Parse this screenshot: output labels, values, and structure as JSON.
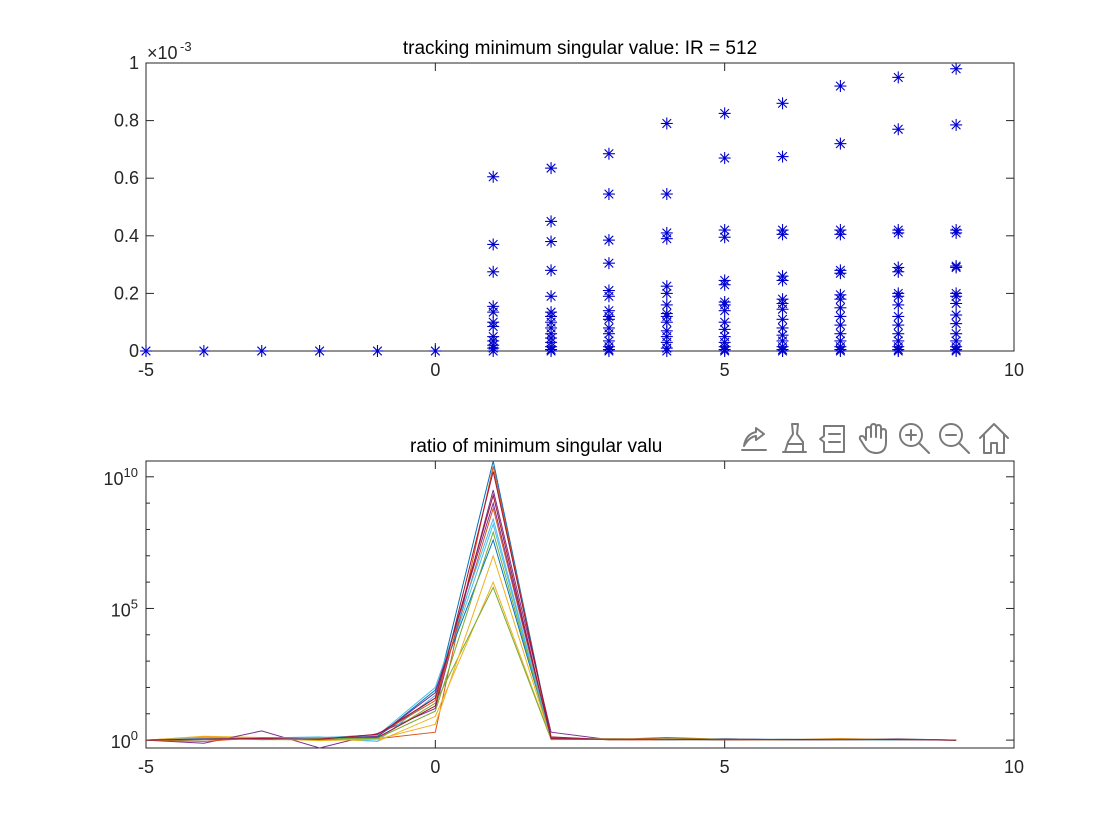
{
  "colors": {
    "axis": "#262626",
    "marker": "#0000cc",
    "toolbar": "#7a7a7a",
    "series_palette": [
      "#0072BD",
      "#D95319",
      "#EDB120",
      "#7E2F8E",
      "#77AC30",
      "#4DBEEE",
      "#A2142F"
    ]
  },
  "toolbar": {
    "icons": [
      "export-icon",
      "brush-icon",
      "data-tips-icon",
      "pan-icon",
      "zoom-in-icon",
      "zoom-out-icon",
      "home-icon"
    ]
  },
  "chart_data": [
    {
      "type": "scatter",
      "title": "tracking minimum singular value: IR = 512",
      "xlabel": "",
      "ylabel": "",
      "exponent_label": "×10",
      "exponent_value": "-3",
      "xlim": [
        -5,
        10
      ],
      "ylim": [
        0,
        1
      ],
      "xticks": [
        -5,
        0,
        5,
        10
      ],
      "yticks": [
        0,
        0.2,
        0.4,
        0.6,
        0.8,
        1
      ],
      "ytick_labels": [
        "0",
        "0.2",
        "0.4",
        "0.6",
        "0.8",
        "1"
      ],
      "marker": "asterisk",
      "grid": false,
      "points_by_x": [
        {
          "x": -5,
          "y": [
            0
          ]
        },
        {
          "x": -4,
          "y": [
            0
          ]
        },
        {
          "x": -3,
          "y": [
            0
          ]
        },
        {
          "x": -2,
          "y": [
            0
          ]
        },
        {
          "x": -1,
          "y": [
            0
          ]
        },
        {
          "x": 0,
          "y": [
            0
          ]
        },
        {
          "x": 1,
          "y": [
            0.605,
            0.37,
            0.275,
            0.155,
            0.135,
            0.1,
            0.085,
            0.05,
            0.035,
            0.02,
            0.01,
            0.0
          ]
        },
        {
          "x": 2,
          "y": [
            0.635,
            0.45,
            0.38,
            0.28,
            0.19,
            0.135,
            0.12,
            0.1,
            0.08,
            0.06,
            0.045,
            0.03,
            0.015,
            0.005,
            0.0
          ]
        },
        {
          "x": 3,
          "y": [
            0.685,
            0.545,
            0.385,
            0.305,
            0.21,
            0.19,
            0.14,
            0.12,
            0.11,
            0.08,
            0.06,
            0.035,
            0.015,
            0.005,
            0.0
          ]
        },
        {
          "x": 4,
          "y": [
            0.79,
            0.545,
            0.41,
            0.39,
            0.225,
            0.2,
            0.16,
            0.13,
            0.12,
            0.1,
            0.07,
            0.05,
            0.03,
            0.01,
            0.0
          ]
        },
        {
          "x": 5,
          "y": [
            0.825,
            0.67,
            0.42,
            0.395,
            0.245,
            0.23,
            0.17,
            0.16,
            0.14,
            0.1,
            0.075,
            0.05,
            0.03,
            0.015,
            0.005,
            0.0
          ]
        },
        {
          "x": 6,
          "y": [
            0.86,
            0.675,
            0.42,
            0.405,
            0.26,
            0.245,
            0.18,
            0.165,
            0.145,
            0.11,
            0.08,
            0.055,
            0.035,
            0.015,
            0.005,
            0.0
          ]
        },
        {
          "x": 7,
          "y": [
            0.92,
            0.72,
            0.42,
            0.405,
            0.28,
            0.27,
            0.195,
            0.18,
            0.15,
            0.12,
            0.09,
            0.06,
            0.035,
            0.015,
            0.005,
            0.0
          ]
        },
        {
          "x": 8,
          "y": [
            0.95,
            0.77,
            0.42,
            0.41,
            0.29,
            0.275,
            0.2,
            0.19,
            0.16,
            0.12,
            0.09,
            0.06,
            0.035,
            0.015,
            0.005,
            0.0
          ]
        },
        {
          "x": 9,
          "y": [
            0.98,
            0.785,
            0.42,
            0.41,
            0.295,
            0.29,
            0.2,
            0.19,
            0.165,
            0.125,
            0.095,
            0.06,
            0.035,
            0.015,
            0.005,
            0.0
          ]
        }
      ]
    },
    {
      "type": "line",
      "title": "ratio of minimum singular valu",
      "xlabel": "",
      "ylabel": "",
      "xlim": [
        -5,
        10
      ],
      "ylim": [
        -0.3,
        10.6
      ],
      "yscale": "log10",
      "xticks": [
        -5,
        0,
        5,
        10
      ],
      "ytick_exponents": [
        0,
        5,
        10
      ],
      "ytick_base": "10",
      "grid": false,
      "x": [
        -5,
        -4,
        -3,
        -2,
        -1,
        0,
        1,
        2,
        3,
        4,
        5,
        6,
        7,
        8,
        9
      ],
      "series_log10": [
        {
          "values": [
            0,
            0.02,
            0.05,
            0.03,
            0.15,
            1.6,
            10.6,
            0.1,
            0.03,
            0.02,
            0.01,
            0.01,
            0.02,
            0.01,
            0
          ]
        },
        {
          "values": [
            0,
            0.12,
            0.06,
            0.0,
            0.05,
            0.3,
            10.4,
            0.06,
            0.02,
            0.1,
            0.03,
            0.02,
            0.01,
            0.02,
            0
          ]
        },
        {
          "values": [
            0,
            0.15,
            0.1,
            0.05,
            -0.05,
            0.9,
            6.0,
            0.03,
            0.05,
            0.03,
            0.02,
            0.01,
            0.06,
            0.02,
            0
          ]
        },
        {
          "values": [
            0,
            -0.12,
            0.35,
            -0.4,
            0.25,
            1.2,
            9.5,
            0.3,
            0.02,
            0.01,
            0.05,
            0.02,
            0.01,
            0.03,
            0
          ]
        },
        {
          "values": [
            0,
            0.05,
            0.02,
            0.01,
            0.05,
            1.4,
            5.8,
            0.02,
            0.03,
            0.02,
            0.01,
            0.02,
            0.03,
            0.01,
            0
          ]
        },
        {
          "values": [
            0,
            0.05,
            0.08,
            0.12,
            -0.04,
            1.7,
            8.2,
            0.04,
            0.05,
            0.01,
            0.05,
            0.02,
            0.02,
            0.05,
            0
          ]
        },
        {
          "values": [
            0,
            0.03,
            0.07,
            0.04,
            0.1,
            1.3,
            10.2,
            0.12,
            0.01,
            0.03,
            0.02,
            0.02,
            0.01,
            0.02,
            0
          ]
        },
        {
          "values": [
            0,
            0.08,
            0.02,
            0.06,
            0.12,
            1.9,
            7.6,
            0.05,
            0.04,
            0.02,
            0.03,
            0.01,
            0.03,
            0.01,
            0
          ]
        },
        {
          "values": [
            0,
            -0.05,
            0.1,
            0.08,
            0.2,
            1.5,
            8.8,
            0.08,
            0.02,
            0.01,
            0.01,
            0.03,
            0.02,
            0.04,
            0
          ]
        },
        {
          "values": [
            0,
            0.1,
            0.05,
            -0.02,
            0.03,
            0.6,
            7.0,
            0.02,
            0.06,
            0.04,
            0.02,
            0.01,
            0.04,
            0.02,
            0
          ]
        },
        {
          "values": [
            0,
            0.06,
            0.04,
            0.09,
            0.15,
            1.8,
            9.0,
            0.06,
            0.03,
            0.02,
            0.04,
            0.02,
            0.01,
            0.03,
            0
          ]
        },
        {
          "values": [
            0,
            0.02,
            0.09,
            0.05,
            0.07,
            1.1,
            7.9,
            0.04,
            0.02,
            0.05,
            0.03,
            0.02,
            0.02,
            0.02,
            0
          ]
        },
        {
          "values": [
            0,
            0.07,
            0.03,
            0.1,
            0.18,
            2.0,
            8.4,
            0.03,
            0.04,
            0.02,
            0.02,
            0.03,
            0.02,
            0.01,
            0
          ]
        },
        {
          "values": [
            0,
            0.04,
            0.06,
            0.03,
            0.22,
            1.6,
            9.3,
            0.05,
            0.03,
            0.03,
            0.01,
            0.02,
            0.03,
            0.02,
            0
          ]
        }
      ]
    }
  ]
}
